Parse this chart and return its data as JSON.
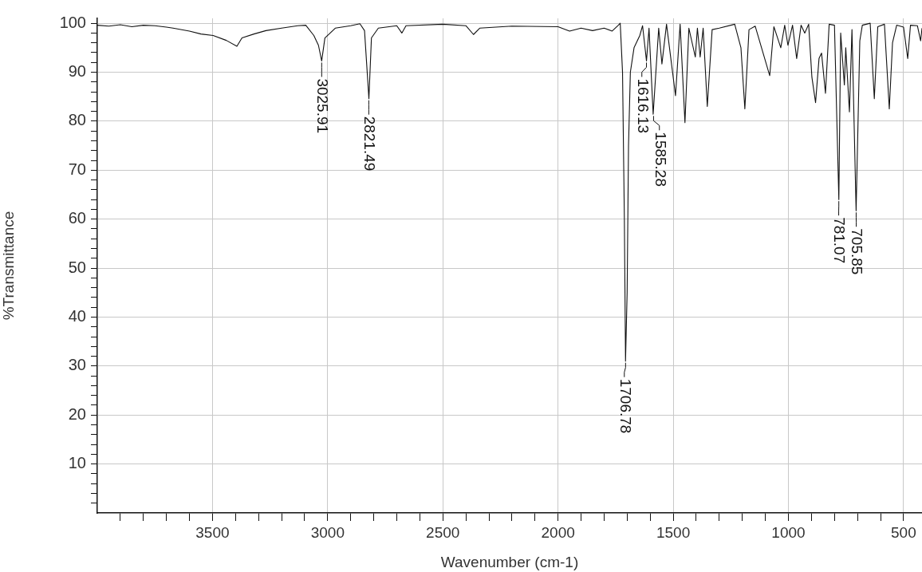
{
  "chart_data": {
    "type": "line",
    "xlabel": "Wavenumber (cm-1)",
    "ylabel": "%Transmittance",
    "grid": true,
    "marker": "none",
    "line_style": "solid",
    "xlim": [
      4000,
      420
    ],
    "ylim": [
      0,
      101
    ],
    "xticks": [
      {
        "value": 3900,
        "label": null
      },
      {
        "value": 3800,
        "label": null
      },
      {
        "value": 3700,
        "label": null
      },
      {
        "value": 3600,
        "label": null
      },
      3500,
      {
        "value": 3400,
        "label": null
      },
      {
        "value": 3300,
        "label": null
      },
      {
        "value": 3200,
        "label": null
      },
      {
        "value": 3100,
        "label": null
      },
      3000,
      {
        "value": 2900,
        "label": null
      },
      {
        "value": 2800,
        "label": null
      },
      {
        "value": 2700,
        "label": null
      },
      {
        "value": 2600,
        "label": null
      },
      2500,
      {
        "value": 2400,
        "label": null
      },
      {
        "value": 2300,
        "label": null
      },
      {
        "value": 2200,
        "label": null
      },
      {
        "value": 2100,
        "label": null
      },
      2000,
      {
        "value": 1900,
        "label": null
      },
      {
        "value": 1800,
        "label": null
      },
      {
        "value": 1700,
        "label": null
      },
      {
        "value": 1600,
        "label": null
      },
      1500,
      {
        "value": 1400,
        "label": null
      },
      {
        "value": 1300,
        "label": null
      },
      {
        "value": 1200,
        "label": null
      },
      {
        "value": 1100,
        "label": null
      },
      1000,
      {
        "value": 900,
        "label": null
      },
      {
        "value": 800,
        "label": null
      },
      {
        "value": 700,
        "label": null
      },
      {
        "value": 600,
        "label": null
      },
      500
    ],
    "yticks": [
      {
        "value": 2,
        "label": null
      },
      {
        "value": 4,
        "label": null
      },
      {
        "value": 6,
        "label": null
      },
      {
        "value": 8,
        "label": null
      },
      10,
      {
        "value": 12,
        "label": null
      },
      {
        "value": 14,
        "label": null
      },
      {
        "value": 16,
        "label": null
      },
      {
        "value": 18,
        "label": null
      },
      20,
      {
        "value": 22,
        "label": null
      },
      {
        "value": 24,
        "label": null
      },
      {
        "value": 26,
        "label": null
      },
      {
        "value": 28,
        "label": null
      },
      30,
      {
        "value": 32,
        "label": null
      },
      {
        "value": 34,
        "label": null
      },
      {
        "value": 36,
        "label": null
      },
      {
        "value": 38,
        "label": null
      },
      40,
      {
        "value": 42,
        "label": null
      },
      {
        "value": 44,
        "label": null
      },
      {
        "value": 46,
        "label": null
      },
      {
        "value": 48,
        "label": null
      },
      50,
      {
        "value": 52,
        "label": null
      },
      {
        "value": 54,
        "label": null
      },
      {
        "value": 56,
        "label": null
      },
      {
        "value": 58,
        "label": null
      },
      60,
      {
        "value": 62,
        "label": null
      },
      {
        "value": 64,
        "label": null
      },
      {
        "value": 66,
        "label": null
      },
      {
        "value": 68,
        "label": null
      },
      70,
      {
        "value": 72,
        "label": null
      },
      {
        "value": 74,
        "label": null
      },
      {
        "value": 76,
        "label": null
      },
      {
        "value": 78,
        "label": null
      },
      80,
      {
        "value": 82,
        "label": null
      },
      {
        "value": 84,
        "label": null
      },
      {
        "value": 86,
        "label": null
      },
      {
        "value": 88,
        "label": null
      },
      90,
      {
        "value": 92,
        "label": null
      },
      {
        "value": 94,
        "label": null
      },
      {
        "value": 96,
        "label": null
      },
      {
        "value": 98,
        "label": null
      },
      100
    ],
    "series": [
      {
        "color": "#111111",
        "x": [
          4000,
          3950,
          3900,
          3850,
          3800,
          3750,
          3700,
          3671,
          3600,
          3550,
          3497,
          3440,
          3394,
          3372,
          3320,
          3268,
          3200,
          3130,
          3095,
          3060,
          3040,
          3026,
          3012,
          2967,
          2900,
          2860,
          2840,
          2821,
          2810,
          2780,
          2700,
          2678,
          2660,
          2500,
          2400,
          2367,
          2340,
          2200,
          2000,
          1950,
          1900,
          1850,
          1800,
          1765,
          1740,
          1730,
          1720,
          1712,
          1707,
          1700,
          1694,
          1686,
          1670,
          1645,
          1633,
          1616,
          1605,
          1587,
          1563,
          1549,
          1529,
          1490,
          1470,
          1449,
          1432,
          1404,
          1395,
          1383,
          1370,
          1352,
          1331,
          1300,
          1233,
          1206,
          1189,
          1171,
          1144,
          1081,
          1063,
          1033,
          1016,
          1002,
          982,
          964,
          945,
          929,
          912,
          898,
          882,
          867,
          856,
          839,
          823,
          800,
          781,
          773,
          757,
          751,
          735,
          724,
          706,
          690,
          679,
          645,
          627,
          612,
          583,
          562,
          548,
          530,
          500,
          482,
          470,
          440,
          426,
          420
        ],
        "values": [
          99.6,
          99.4,
          99.7,
          99.3,
          99.6,
          99.5,
          99.2,
          99,
          98.4,
          97.8,
          97.5,
          96.5,
          95.3,
          97,
          97.8,
          98.5,
          99,
          99.5,
          99.6,
          97.5,
          95.5,
          92.3,
          97,
          99,
          99.5,
          99.9,
          98.5,
          84.6,
          97,
          99,
          99.5,
          98,
          99.5,
          99.8,
          99.5,
          97.7,
          99,
          99.4,
          99.3,
          98.4,
          99,
          98.5,
          99,
          98.4,
          99.5,
          100,
          90,
          60,
          31,
          45,
          75,
          90,
          95,
          97.5,
          99.5,
          92.3,
          99,
          81.4,
          99,
          91.7,
          99.8,
          85.2,
          99.8,
          79.7,
          99,
          93.1,
          99,
          93.1,
          99,
          83,
          98.7,
          99,
          99.8,
          95,
          82.5,
          98.7,
          99.4,
          89.3,
          99.3,
          95,
          99.6,
          95.5,
          99.6,
          92.8,
          99.6,
          98,
          99.8,
          89,
          83.8,
          92.8,
          93.9,
          85.7,
          99.8,
          99.6,
          64,
          98,
          87.4,
          95,
          81.9,
          98.7,
          61.7,
          96.4,
          99.6,
          100,
          84.6,
          99.3,
          99.8,
          82.5,
          96,
          99.6,
          99.2,
          92.8,
          99.6,
          99.5,
          96.4,
          99
        ]
      }
    ],
    "annotations": [
      {
        "text": "3025.91",
        "x": 3025.91,
        "y": 92.3
      },
      {
        "text": "2821.49",
        "x": 2821.49,
        "y": 84.6
      },
      {
        "text": "1706.78",
        "x": 1706.78,
        "y": 31
      },
      {
        "text": "1616.13",
        "x": 1616.13,
        "y": 92.3
      },
      {
        "text": "1585.28",
        "x": 1585.28,
        "y": 81.4
      },
      {
        "text": "781.07",
        "x": 781.07,
        "y": 64
      },
      {
        "text": "705.85",
        "x": 705.85,
        "y": 61.7
      }
    ]
  }
}
